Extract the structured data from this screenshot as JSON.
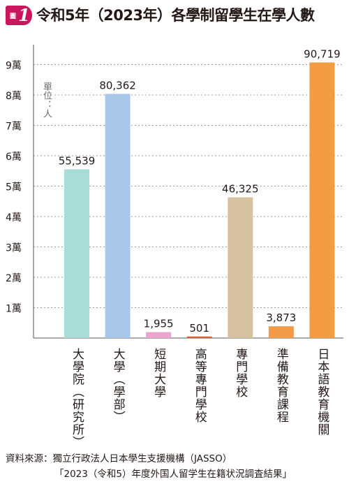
{
  "header": {
    "badge_text": "圖",
    "badge_number": "1",
    "title": "令和5年（2023年）各學制留學生在學人數"
  },
  "chart_data": {
    "type": "bar",
    "title": "令和5年（2023年）各學制留學生在學人數",
    "unit_label": "單位：人",
    "categories": [
      "大學院（研究所）",
      "大學（學部）",
      "短期大學",
      "高等專門學校",
      "專門學校",
      "準備教育課程",
      "日本語教育機關"
    ],
    "values": [
      55539,
      80362,
      1955,
      501,
      46325,
      3873,
      90719
    ],
    "value_labels": [
      "55,539",
      "80,362",
      "1,955",
      "501",
      "46,325",
      "3,873",
      "90,719"
    ],
    "bar_colors": [
      "#a9dcd6",
      "#a8c6e8",
      "#eba6cf",
      "#dd5a2a",
      "#d6c2a0",
      "#f19a49",
      "#f39c41"
    ],
    "ylim": [
      0,
      100000
    ],
    "y_ticks": [
      10000,
      20000,
      30000,
      40000,
      50000,
      60000,
      70000,
      80000,
      90000
    ],
    "y_tick_labels": [
      "1萬",
      "2萬",
      "3萬",
      "4萬",
      "5萬",
      "6萬",
      "7萬",
      "8萬",
      "9萬"
    ],
    "grid": true
  },
  "source": {
    "line1": "資料來源：獨立行政法人日本學生支援機構（JASSO）",
    "line2": "「2023（令和5）年度外国人留学生在籍状況調査結果」"
  }
}
